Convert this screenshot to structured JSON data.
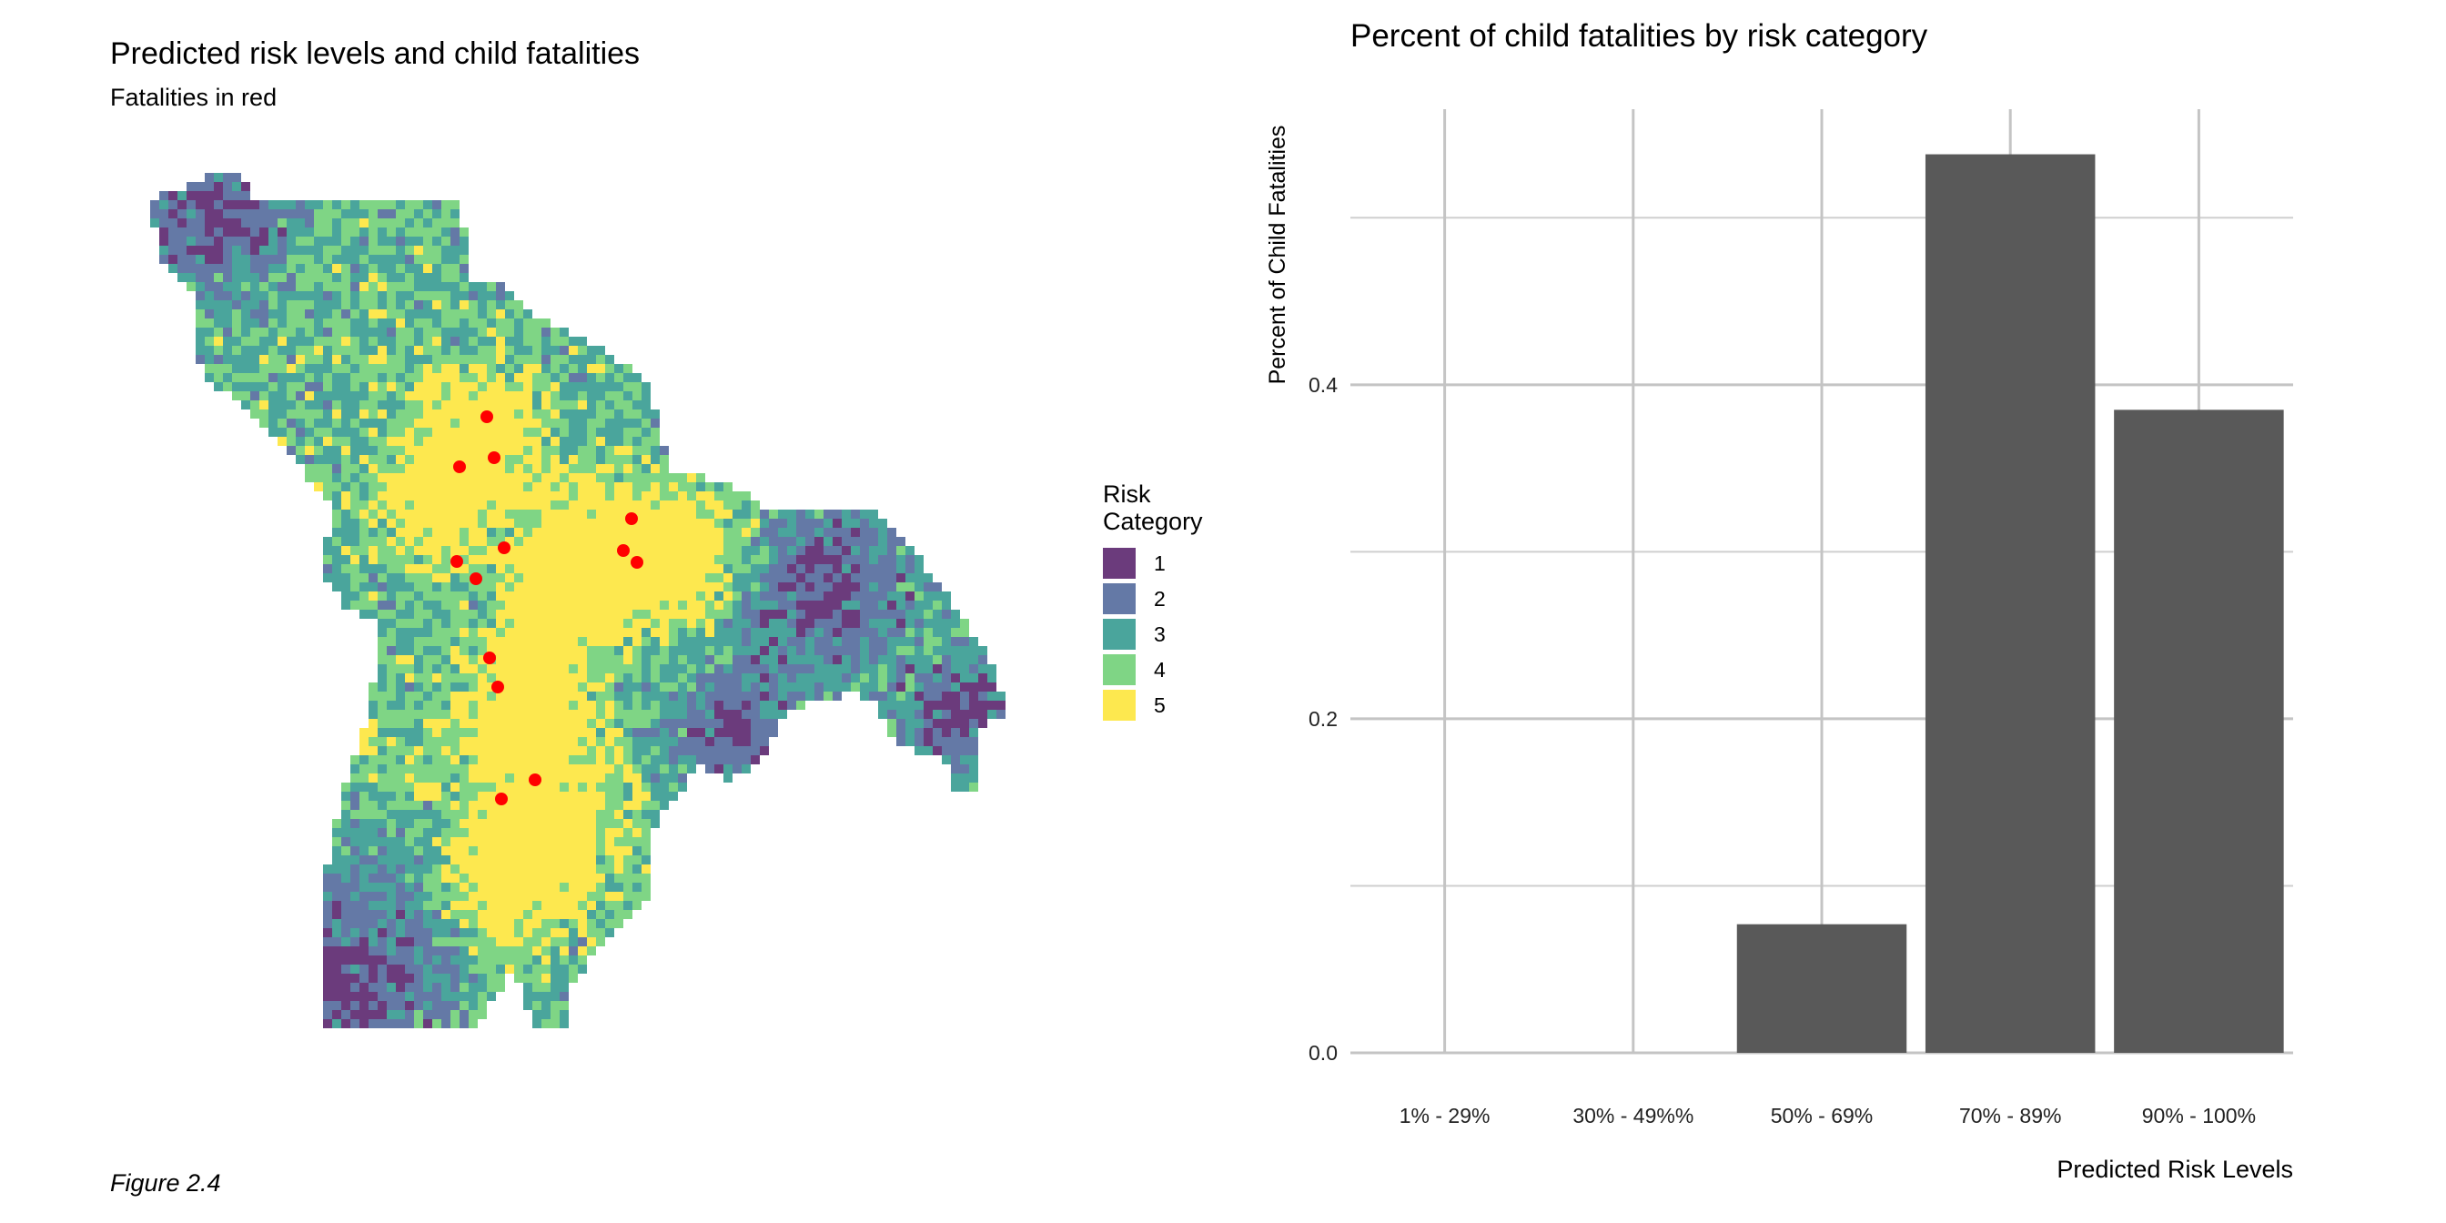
{
  "figure_caption": "Figure 2.4",
  "chart_data": [
    {
      "type": "heatmap",
      "title": "Predicted risk levels and child fatalities",
      "subtitle": "Fatalities in red",
      "legend": {
        "title": "Risk\nCategory",
        "placement": "right",
        "categories": [
          {
            "label": "1",
            "color": "#6b3b7c"
          },
          {
            "label": "2",
            "color": "#6479a6"
          },
          {
            "label": "3",
            "color": "#4aa59c"
          },
          {
            "label": "4",
            "color": "#7fd585"
          },
          {
            "label": "5",
            "color": "#fde84f"
          }
        ]
      },
      "fatality_color": "#ff0000",
      "fatality_count": 13
    },
    {
      "type": "bar",
      "title": "Percent of child fatalities by risk category",
      "xlabel": "Predicted Risk Levels",
      "ylabel": "Percent of Child Fatalities",
      "categories": [
        "1% - 29%",
        "30% - 49%%",
        "50% - 69%",
        "70% - 89%",
        "90% - 100%"
      ],
      "values": [
        0.0,
        0.0,
        0.077,
        0.538,
        0.385
      ],
      "ylim": [
        0,
        0.565
      ],
      "yticks": [
        0.0,
        0.2,
        0.4
      ],
      "ytick_labels": [
        "0.0",
        "0.2",
        "0.4"
      ],
      "bar_color": "#595959",
      "grid": true
    }
  ]
}
